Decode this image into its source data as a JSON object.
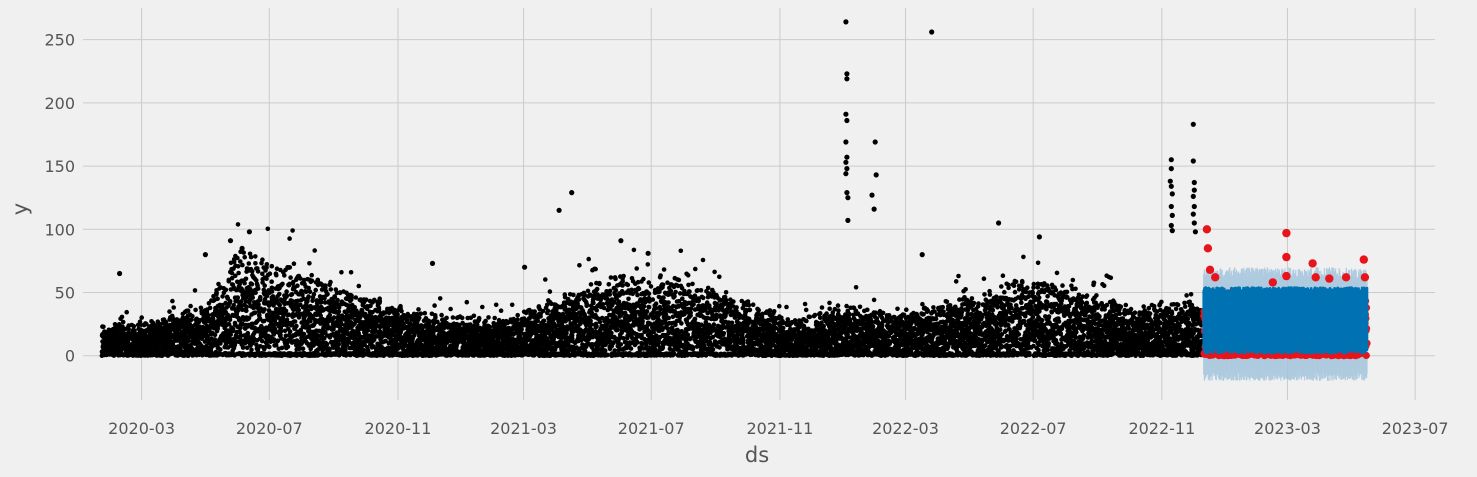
{
  "chart_data": {
    "type": "scatter",
    "title": "",
    "xlabel": "ds",
    "ylabel": "y",
    "xlim": [
      "2020-01-05",
      "2023-07-20"
    ],
    "ylim": [
      -35,
      275
    ],
    "grid": true,
    "x_ticks": [
      "2020-03",
      "2020-07",
      "2020-11",
      "2021-03",
      "2021-07",
      "2021-11",
      "2022-03",
      "2022-07",
      "2022-11",
      "2023-03",
      "2023-07"
    ],
    "y_ticks": [
      0,
      50,
      100,
      150,
      200,
      250
    ],
    "colors": {
      "background": "#f0f0f0",
      "history": "#000000",
      "actual_test": "#e8141c",
      "forecast": "#0072b2",
      "uncertainty": "#a7c7de",
      "grid": "#cbcbcb",
      "text": "#555555"
    },
    "history": {
      "start": "2020-01-23",
      "end": "2022-12-10",
      "seasonal_level": [
        [
          "2020-01-23",
          12
        ],
        [
          "2020-03-15",
          14
        ],
        [
          "2020-05-01",
          20
        ],
        [
          "2020-06-01",
          42
        ],
        [
          "2020-07-15",
          38
        ],
        [
          "2020-09-01",
          28
        ],
        [
          "2020-11-01",
          20
        ],
        [
          "2020-12-15",
          16
        ],
        [
          "2021-02-15",
          15
        ],
        [
          "2021-04-01",
          24
        ],
        [
          "2021-06-01",
          32
        ],
        [
          "2021-08-01",
          30
        ],
        [
          "2021-10-01",
          22
        ],
        [
          "2021-11-15",
          14
        ],
        [
          "2022-01-01",
          20
        ],
        [
          "2022-03-01",
          17
        ],
        [
          "2022-05-01",
          24
        ],
        [
          "2022-06-15",
          30
        ],
        [
          "2022-08-01",
          28
        ],
        [
          "2022-10-01",
          20
        ],
        [
          "2022-12-10",
          22
        ]
      ],
      "outliers": [
        [
          "2020-02-09",
          65
        ],
        [
          "2020-05-01",
          80
        ],
        [
          "2020-05-25",
          91
        ],
        [
          "2020-06-12",
          98
        ],
        [
          "2020-06-05",
          85
        ],
        [
          "2020-12-04",
          73
        ],
        [
          "2021-03-02",
          70
        ],
        [
          "2021-04-04",
          115
        ],
        [
          "2021-04-16",
          129
        ],
        [
          "2021-06-02",
          91
        ],
        [
          "2021-06-28",
          81
        ],
        [
          "2022-01-03",
          264
        ],
        [
          "2022-01-04",
          223
        ],
        [
          "2022-01-04",
          219
        ],
        [
          "2022-01-03",
          191
        ],
        [
          "2022-01-04",
          186
        ],
        [
          "2022-01-03",
          169
        ],
        [
          "2022-01-04",
          157
        ],
        [
          "2022-01-03",
          153
        ],
        [
          "2022-01-04",
          148
        ],
        [
          "2022-01-03",
          144
        ],
        [
          "2022-01-04",
          129
        ],
        [
          "2022-01-05",
          125
        ],
        [
          "2022-01-05",
          107
        ],
        [
          "2022-01-31",
          169
        ],
        [
          "2022-02-01",
          143
        ],
        [
          "2022-01-28",
          127
        ],
        [
          "2022-01-30",
          116
        ],
        [
          "2022-03-26",
          256
        ],
        [
          "2022-03-17",
          80
        ],
        [
          "2022-05-29",
          105
        ],
        [
          "2022-07-07",
          94
        ],
        [
          "2022-11-10",
          155
        ],
        [
          "2022-11-10",
          148
        ],
        [
          "2022-11-09",
          138
        ],
        [
          "2022-11-10",
          134
        ],
        [
          "2022-11-11",
          128
        ],
        [
          "2022-11-10",
          118
        ],
        [
          "2022-11-11",
          111
        ],
        [
          "2022-11-10",
          103
        ],
        [
          "2022-11-11",
          99
        ],
        [
          "2022-12-01",
          183
        ],
        [
          "2022-12-01",
          154
        ],
        [
          "2022-12-02",
          137
        ],
        [
          "2022-12-02",
          131
        ],
        [
          "2022-12-01",
          126
        ],
        [
          "2022-12-02",
          118
        ],
        [
          "2022-12-01",
          112
        ],
        [
          "2022-12-02",
          105
        ],
        [
          "2022-12-03",
          98
        ]
      ]
    },
    "actual_test": {
      "start": "2022-12-11",
      "end": "2023-05-16",
      "level": 28,
      "outliers": [
        [
          "2022-12-14",
          100
        ],
        [
          "2022-12-15",
          85
        ],
        [
          "2022-12-17",
          68
        ],
        [
          "2022-12-22",
          62
        ],
        [
          "2023-02-15",
          58
        ],
        [
          "2023-02-28",
          97
        ],
        [
          "2023-02-28",
          78
        ],
        [
          "2023-02-28",
          63
        ],
        [
          "2023-03-25",
          73
        ],
        [
          "2023-03-28",
          62
        ],
        [
          "2023-04-10",
          61
        ],
        [
          "2023-04-26",
          62
        ],
        [
          "2023-05-13",
          76
        ],
        [
          "2023-05-14",
          62
        ]
      ]
    },
    "forecast": {
      "start": "2022-12-11",
      "end": "2023-05-16",
      "yhat_low": 2,
      "yhat_high": 54,
      "band_low": -20,
      "band_high": 70
    }
  }
}
